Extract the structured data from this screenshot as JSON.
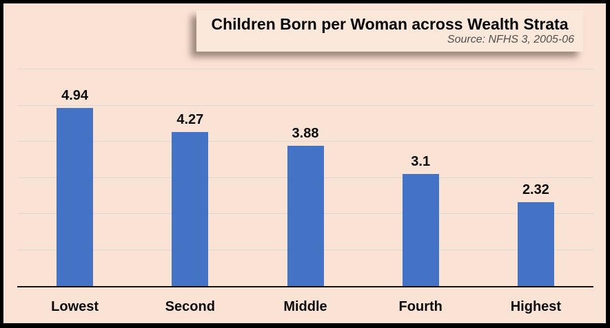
{
  "header": {
    "title": "Children Born per Woman across Wealth Strata",
    "source": "Source: NFHS 3, 2005-06"
  },
  "chart_data": {
    "type": "bar",
    "title": "Children Born per Woman across Wealth Strata",
    "subtitle": "Source: NFHS 3, 2005-06",
    "categories": [
      "Lowest",
      "Second",
      "Middle",
      "Fourth",
      "Highest"
    ],
    "values": [
      4.94,
      4.27,
      3.88,
      3.1,
      2.32
    ],
    "value_labels": [
      "4.94",
      "4.27",
      "3.88",
      "3.1",
      "2.32"
    ],
    "xlabel": "",
    "ylabel": "",
    "ylim": [
      0,
      6
    ],
    "gridline_step": 1,
    "grid": true,
    "legend": false,
    "bar_color": "#4472c4",
    "background_color": "#fae3d4",
    "gridline_color": "#d9d9d9",
    "axis_color": "#121212"
  }
}
